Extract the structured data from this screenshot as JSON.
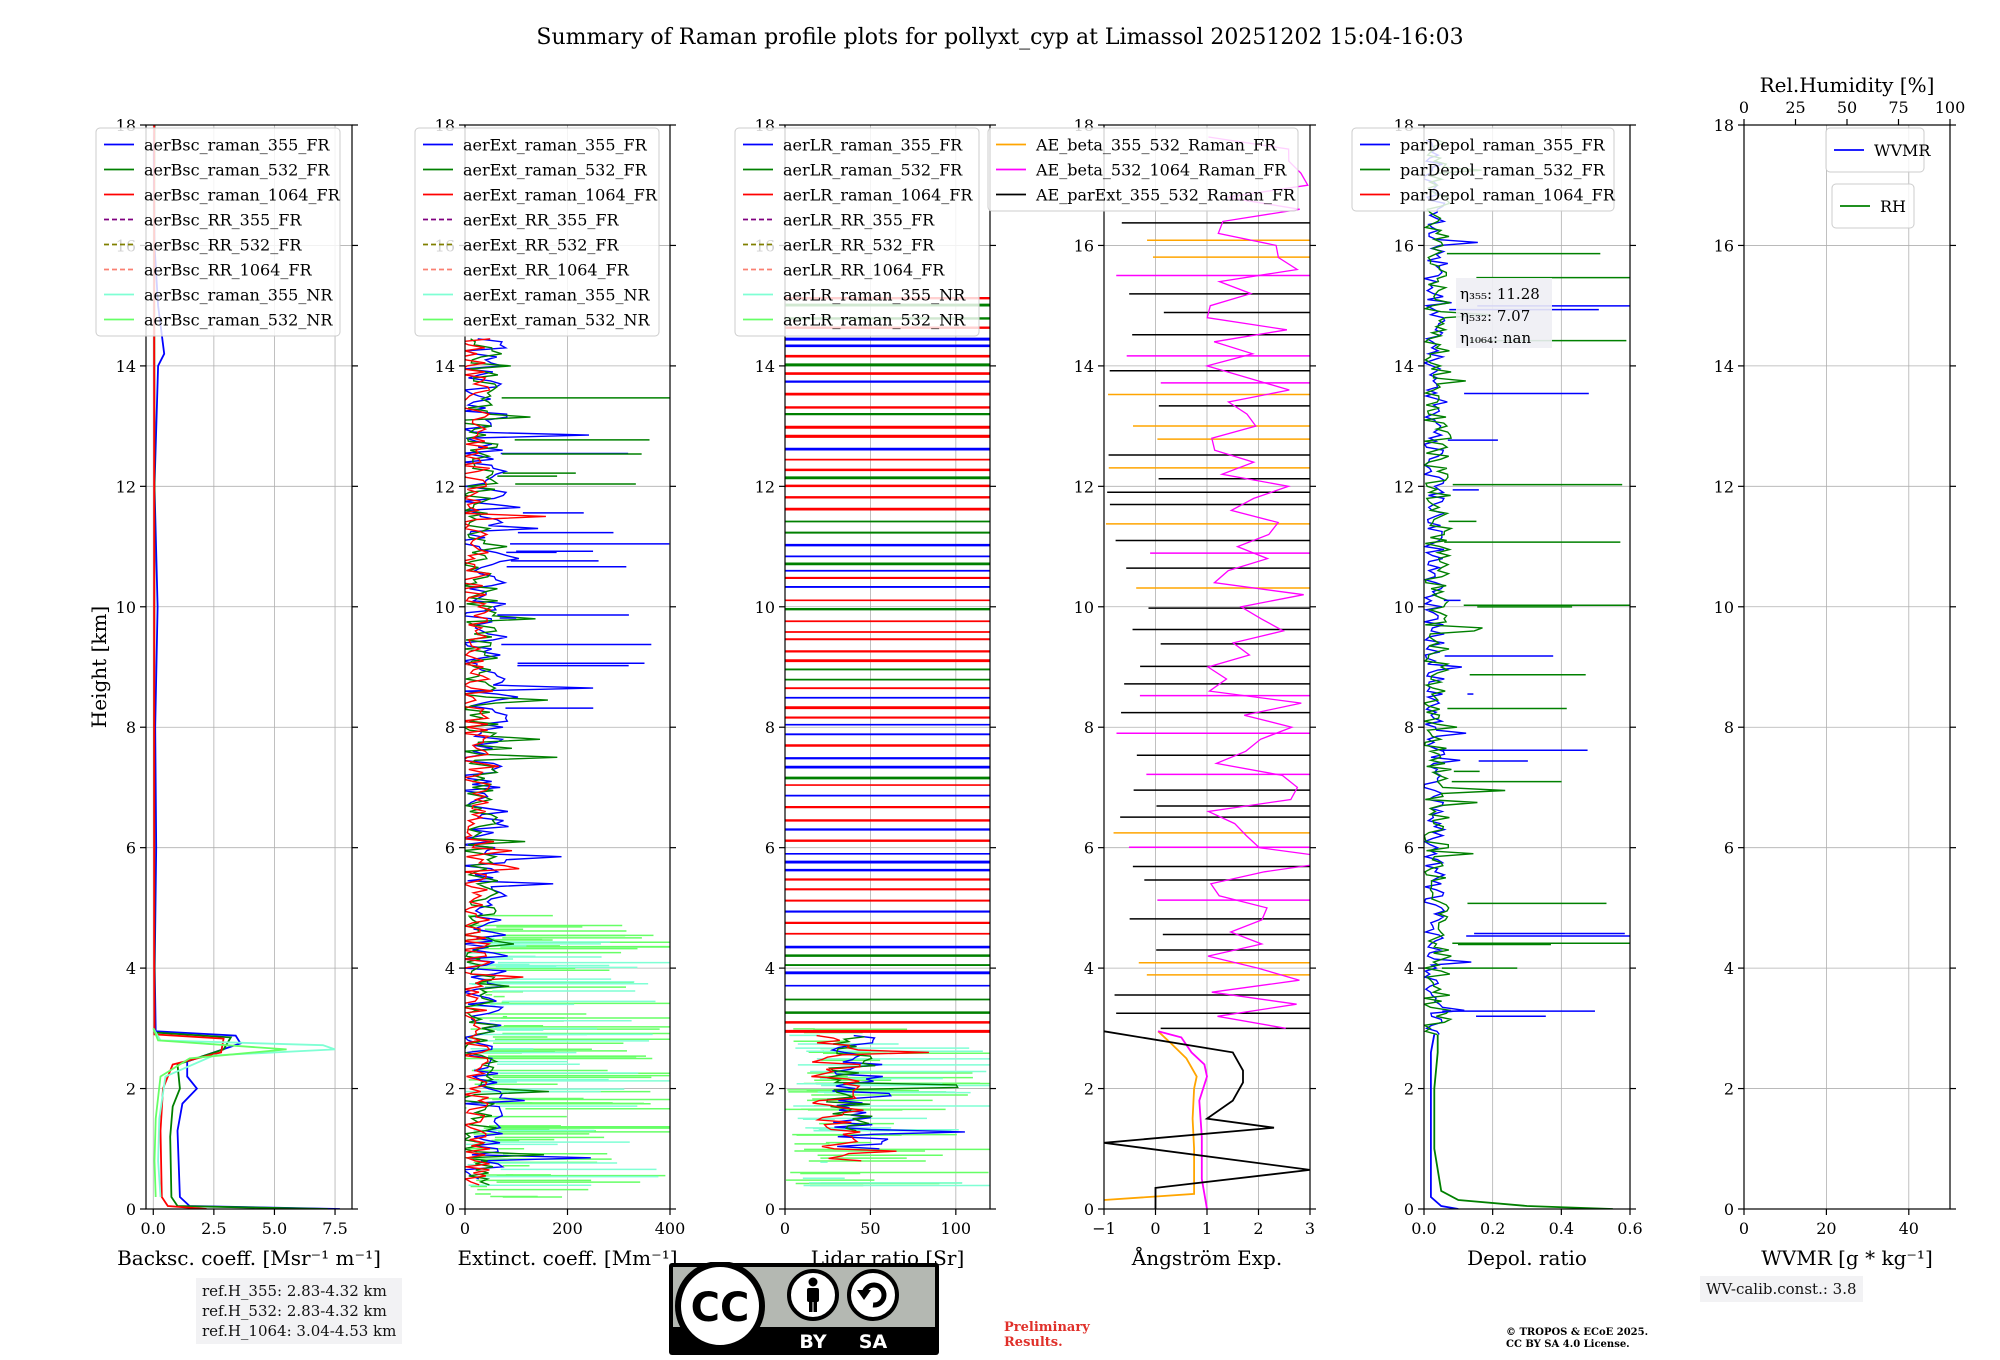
{
  "title": "Summary of Raman profile plots for pollyxt_cyp at Limassol 20251202 15:04-16:03",
  "colors": {
    "blue": "#0000ff",
    "green": "#008000",
    "red": "#ff0000",
    "purple": "#800080",
    "olive": "#808000",
    "salmon": "#fa8072",
    "cyan": "#7fffd4",
    "lightgreen": "#66ff66",
    "orange": "#ffa500",
    "magenta": "#ff00ff",
    "black": "#000000"
  },
  "chart_data": [
    {
      "type": "line",
      "id": "bsc",
      "xlabel": "Backsc. coeff. [Msr⁻¹ m⁻¹]",
      "ylabel": "Height [km]",
      "xlim": [
        -0.3,
        8.2
      ],
      "ylim": [
        0,
        18
      ],
      "xticks": [
        0,
        2.5,
        5,
        7.5
      ],
      "xticklabels": [
        "0.0",
        "2.5",
        "5.0",
        "7.5"
      ],
      "yticks": [
        0,
        2,
        4,
        6,
        8,
        10,
        12,
        14,
        16,
        18
      ],
      "legend": "upper-left",
      "series": [
        {
          "name": "aerBsc_raman_355_FR",
          "color": "blue",
          "style": "solid",
          "y": [
            0,
            0.05,
            0.2,
            1.3,
            1.75,
            2.0,
            2.2,
            2.45,
            2.75,
            2.88,
            2.95,
            4,
            6,
            8,
            10,
            12,
            14,
            14.2,
            15,
            16,
            17.5,
            18
          ],
          "x": [
            7.7,
            1.5,
            1.1,
            1.0,
            1.2,
            1.8,
            1.4,
            1.4,
            3.6,
            3.4,
            0.1,
            0.06,
            0.12,
            0.08,
            0.18,
            0.05,
            0.2,
            0.45,
            0.2,
            0.05,
            0.02,
            0.05
          ]
        },
        {
          "name": "aerBsc_raman_532_FR",
          "color": "green",
          "style": "solid",
          "y": [
            0,
            0.05,
            0.2,
            1.2,
            1.7,
            2.0,
            2.4,
            2.65,
            2.85,
            2.93,
            4,
            8,
            12,
            16,
            18
          ],
          "x": [
            7.2,
            1.0,
            0.75,
            0.7,
            0.8,
            1.1,
            1.0,
            2.9,
            3.2,
            0.05,
            0.05,
            0.04,
            0.05,
            0.04,
            0.05
          ]
        },
        {
          "name": "aerBsc_raman_1064_FR",
          "color": "red",
          "style": "solid",
          "y": [
            0,
            0.05,
            0.2,
            1.3,
            2.0,
            2.4,
            2.6,
            2.83,
            2.9,
            4,
            8,
            12,
            16,
            18
          ],
          "x": [
            2.2,
            0.6,
            0.35,
            0.3,
            0.4,
            0.8,
            2.8,
            2.9,
            0.05,
            0.04,
            0.04,
            0.04,
            0.04,
            0.04
          ]
        },
        {
          "name": "aerBsc_RR_355_FR",
          "color": "purple",
          "style": "dashed",
          "y": [],
          "x": []
        },
        {
          "name": "aerBsc_RR_532_FR",
          "color": "olive",
          "style": "dashed",
          "y": [],
          "x": []
        },
        {
          "name": "aerBsc_RR_1064_FR",
          "color": "salmon",
          "style": "dashed",
          "y": [],
          "x": []
        },
        {
          "name": "aerBsc_raman_355_NR",
          "color": "cyan",
          "style": "solid",
          "y": [
            0.2,
            0.8,
            1.5,
            2.2,
            2.55,
            2.65,
            2.72,
            2.8,
            3.0
          ],
          "x": [
            0.3,
            0.2,
            0.25,
            0.5,
            2.5,
            7.5,
            7.0,
            0.3,
            0.0
          ]
        },
        {
          "name": "aerBsc_raman_532_NR",
          "color": "lightgreen",
          "style": "solid",
          "y": [
            0.2,
            0.8,
            1.5,
            2.2,
            2.5,
            2.65,
            2.8,
            3.0
          ],
          "x": [
            0.1,
            0.05,
            0.1,
            0.3,
            1.5,
            5.5,
            0.2,
            0.0
          ]
        }
      ]
    },
    {
      "type": "line",
      "id": "ext",
      "xlabel": "Extinct. coeff. [Mm⁻¹]",
      "xlim": [
        0,
        400
      ],
      "ylim": [
        0,
        18
      ],
      "xticks": [
        0,
        200,
        400
      ],
      "xticklabels": [
        "0",
        "200",
        "400"
      ],
      "yticks": [
        0,
        2,
        4,
        6,
        8,
        10,
        12,
        14,
        16,
        18
      ],
      "legend": "upper-left",
      "series": [
        {
          "name": "aerExt_raman_355_FR",
          "color": "blue",
          "style": "solid",
          "y": [],
          "x": []
        },
        {
          "name": "aerExt_raman_532_FR",
          "color": "green",
          "style": "solid",
          "y": [],
          "x": []
        },
        {
          "name": "aerExt_raman_1064_FR",
          "color": "red",
          "style": "solid",
          "y": [],
          "x": []
        },
        {
          "name": "aerExt_RR_355_FR",
          "color": "purple",
          "style": "dashed",
          "y": [],
          "x": []
        },
        {
          "name": "aerExt_RR_532_FR",
          "color": "olive",
          "style": "dashed",
          "y": [],
          "x": []
        },
        {
          "name": "aerExt_RR_1064_FR",
          "color": "salmon",
          "style": "dashed",
          "y": [],
          "x": []
        },
        {
          "name": "aerExt_raman_355_NR",
          "color": "cyan",
          "style": "solid",
          "y": [],
          "x": []
        },
        {
          "name": "aerExt_raman_532_NR",
          "color": "lightgreen",
          "style": "solid",
          "y": [],
          "x": []
        }
      ]
    },
    {
      "type": "line",
      "id": "lr",
      "xlabel": "Lidar ratio [Sr]",
      "xlim": [
        0,
        120
      ],
      "ylim": [
        0,
        18
      ],
      "xticks": [
        0,
        50,
        100
      ],
      "xticklabels": [
        "0",
        "50",
        "100"
      ],
      "yticks": [
        0,
        2,
        4,
        6,
        8,
        10,
        12,
        14,
        16,
        18
      ],
      "legend": "upper-left",
      "series": [
        {
          "name": "aerLR_raman_355_FR",
          "color": "blue",
          "style": "solid",
          "y": [],
          "x": []
        },
        {
          "name": "aerLR_raman_532_FR",
          "color": "green",
          "style": "solid",
          "y": [],
          "x": []
        },
        {
          "name": "aerLR_raman_1064_FR",
          "color": "red",
          "style": "solid",
          "y": [],
          "x": []
        },
        {
          "name": "aerLR_RR_355_FR",
          "color": "purple",
          "style": "dashed",
          "y": [],
          "x": []
        },
        {
          "name": "aerLR_RR_532_FR",
          "color": "olive",
          "style": "dashed",
          "y": [],
          "x": []
        },
        {
          "name": "aerLR_RR_1064_FR",
          "color": "salmon",
          "style": "dashed",
          "y": [],
          "x": []
        },
        {
          "name": "aerLR_raman_355_NR",
          "color": "cyan",
          "style": "solid",
          "y": [],
          "x": []
        },
        {
          "name": "aerLR_raman_532_NR",
          "color": "lightgreen",
          "style": "solid",
          "y": [],
          "x": []
        }
      ]
    },
    {
      "type": "line",
      "id": "ae",
      "xlabel": "Ångström Exp.",
      "xlim": [
        -1,
        3
      ],
      "ylim": [
        0,
        18
      ],
      "xticks": [
        -1,
        0,
        1,
        2,
        3
      ],
      "xticklabels": [
        "−1",
        "0",
        "1",
        "2",
        "3"
      ],
      "yticks": [
        0,
        2,
        4,
        6,
        8,
        10,
        12,
        14,
        16,
        18
      ],
      "legend": "upper-right",
      "series": [
        {
          "name": "AE_beta_355_532_Raman_FR",
          "color": "orange",
          "style": "solid",
          "y": [
            0.15,
            0.25,
            1.0,
            1.5,
            2.0,
            2.2,
            2.5,
            2.75,
            2.95
          ],
          "x": [
            -1.0,
            0.75,
            0.75,
            0.72,
            0.75,
            0.8,
            0.6,
            0.3,
            0.05
          ]
        },
        {
          "name": "AE_beta_532_1064_Raman_FR",
          "color": "magenta",
          "style": "solid",
          "y": [
            0.0,
            0.5,
            1.2,
            1.8,
            2.2,
            2.4,
            2.6,
            2.85,
            2.95
          ],
          "x": [
            1.0,
            0.9,
            0.9,
            0.85,
            1.0,
            0.95,
            0.7,
            0.5,
            0.05
          ]
        },
        {
          "name": "AE_parExt_355_532_Raman_FR",
          "color": "black",
          "style": "solid",
          "y": [
            0.0,
            0.35,
            0.65,
            1.1,
            1.35,
            1.5,
            1.8,
            2.1,
            2.3,
            2.6,
            2.95
          ],
          "x": [
            0.0,
            0.0,
            3.0,
            -1.0,
            2.3,
            1.0,
            1.5,
            1.7,
            1.7,
            1.5,
            -1.0
          ]
        }
      ]
    },
    {
      "type": "line",
      "id": "depol",
      "xlabel": "Depol. ratio",
      "xlim": [
        0,
        0.6
      ],
      "ylim": [
        0,
        18
      ],
      "xticks": [
        0,
        0.2,
        0.4,
        0.6
      ],
      "xticklabels": [
        "0.0",
        "0.2",
        "0.4",
        "0.6"
      ],
      "yticks": [
        0,
        2,
        4,
        6,
        8,
        10,
        12,
        14,
        16,
        18
      ],
      "legend": "upper-left",
      "annotations": [
        "η₃₅₅: 11.28",
        "η₅₃₂: 7.07",
        "η₁₀₆₄: nan"
      ],
      "series": [
        {
          "name": "parDepol_raman_355_FR",
          "color": "blue",
          "style": "solid",
          "y": [
            0,
            0.05,
            0.2,
            1.0,
            2.0,
            2.6,
            2.9
          ],
          "x": [
            0.1,
            0.05,
            0.02,
            0.02,
            0.02,
            0.02,
            0.03
          ]
        },
        {
          "name": "parDepol_raman_532_FR",
          "color": "green",
          "style": "solid",
          "y": [
            0,
            0.05,
            0.15,
            0.3,
            1.0,
            2.0,
            2.6,
            2.9
          ],
          "x": [
            0.55,
            0.3,
            0.1,
            0.05,
            0.03,
            0.03,
            0.04,
            0.04
          ]
        },
        {
          "name": "parDepol_raman_1064_FR",
          "color": "red",
          "style": "solid",
          "y": [],
          "x": []
        }
      ]
    },
    {
      "type": "line",
      "id": "wv",
      "xlabel": "WVMR [g * kg⁻¹]",
      "x2label": "Rel.Humidity [%]",
      "xlim": [
        0,
        50
      ],
      "ylim": [
        0,
        18
      ],
      "x2lim": [
        0,
        100
      ],
      "xticks": [
        0,
        20,
        40
      ],
      "xticklabels": [
        "0",
        "20",
        "40"
      ],
      "x2ticks": [
        0,
        25,
        50,
        75,
        100
      ],
      "x2ticklabels": [
        "0",
        "25",
        "50",
        "75",
        "100"
      ],
      "yticks": [
        0,
        2,
        4,
        6,
        8,
        10,
        12,
        14,
        16,
        18
      ],
      "legend": "upper-right",
      "series": [
        {
          "name": "WVMR",
          "color": "blue",
          "style": "solid",
          "y": [],
          "x": []
        },
        {
          "name": "RH",
          "color": "green",
          "style": "solid",
          "y": [],
          "x": []
        }
      ]
    }
  ],
  "notes": {
    "refh": [
      "ref.H_355: 2.83-4.32 km",
      "ref.H_532: 2.83-4.32 km",
      "ref.H_1064: 3.04-4.53 km"
    ],
    "wv_calib": "WV-calib.const.: 3.8",
    "preliminary": [
      "Preliminary",
      "Results."
    ],
    "copyright": [
      "© TROPOS & ECoE 2025.",
      "CC BY SA 4.0 License."
    ]
  },
  "license_badge": {
    "logo": "CC",
    "labels": [
      "BY",
      "SA"
    ]
  }
}
